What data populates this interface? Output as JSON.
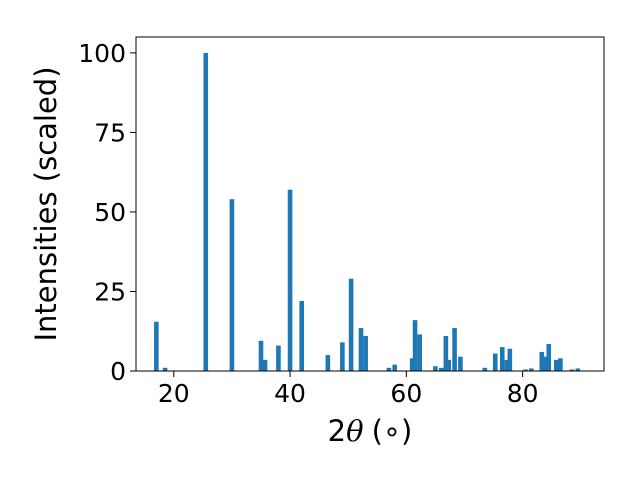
{
  "chart_data": {
    "type": "bar",
    "title": "",
    "xlabel_parts": {
      "number": "2",
      "symbol": "θ",
      "unit": "(∘)"
    },
    "ylabel": "Intensities (scaled)",
    "xlim": [
      13.5,
      94.0
    ],
    "ylim": [
      0,
      105
    ],
    "xticks": [
      20,
      40,
      60,
      80
    ],
    "yticks": [
      0,
      25,
      50,
      75,
      100
    ],
    "bar_color": "#1f77b4",
    "grid": false,
    "legend": "none",
    "points": [
      {
        "x": 17.0,
        "y": 15.5
      },
      {
        "x": 18.5,
        "y": 1.0
      },
      {
        "x": 25.5,
        "y": 100.0
      },
      {
        "x": 30.0,
        "y": 54.0
      },
      {
        "x": 35.0,
        "y": 9.5
      },
      {
        "x": 35.7,
        "y": 3.5
      },
      {
        "x": 38.0,
        "y": 8.0
      },
      {
        "x": 40.0,
        "y": 57.0
      },
      {
        "x": 42.0,
        "y": 22.0
      },
      {
        "x": 46.5,
        "y": 5.0
      },
      {
        "x": 49.0,
        "y": 9.0
      },
      {
        "x": 50.5,
        "y": 29.0
      },
      {
        "x": 52.2,
        "y": 13.5
      },
      {
        "x": 53.0,
        "y": 11.0
      },
      {
        "x": 57.0,
        "y": 1.0
      },
      {
        "x": 58.0,
        "y": 2.0
      },
      {
        "x": 61.0,
        "y": 4.0
      },
      {
        "x": 61.5,
        "y": 16.0
      },
      {
        "x": 62.3,
        "y": 11.5
      },
      {
        "x": 65.0,
        "y": 1.5
      },
      {
        "x": 66.0,
        "y": 1.0
      },
      {
        "x": 66.8,
        "y": 11.0
      },
      {
        "x": 67.3,
        "y": 3.5
      },
      {
        "x": 68.3,
        "y": 13.5
      },
      {
        "x": 69.3,
        "y": 4.5
      },
      {
        "x": 73.5,
        "y": 1.0
      },
      {
        "x": 75.3,
        "y": 5.5
      },
      {
        "x": 76.5,
        "y": 7.5
      },
      {
        "x": 77.3,
        "y": 3.5
      },
      {
        "x": 77.8,
        "y": 7.0
      },
      {
        "x": 80.5,
        "y": 0.5
      },
      {
        "x": 81.5,
        "y": 0.8
      },
      {
        "x": 83.3,
        "y": 6.0
      },
      {
        "x": 83.8,
        "y": 4.5
      },
      {
        "x": 84.5,
        "y": 8.5
      },
      {
        "x": 85.8,
        "y": 3.5
      },
      {
        "x": 86.5,
        "y": 4.0
      },
      {
        "x": 88.5,
        "y": 0.5
      },
      {
        "x": 89.5,
        "y": 0.8
      }
    ]
  }
}
